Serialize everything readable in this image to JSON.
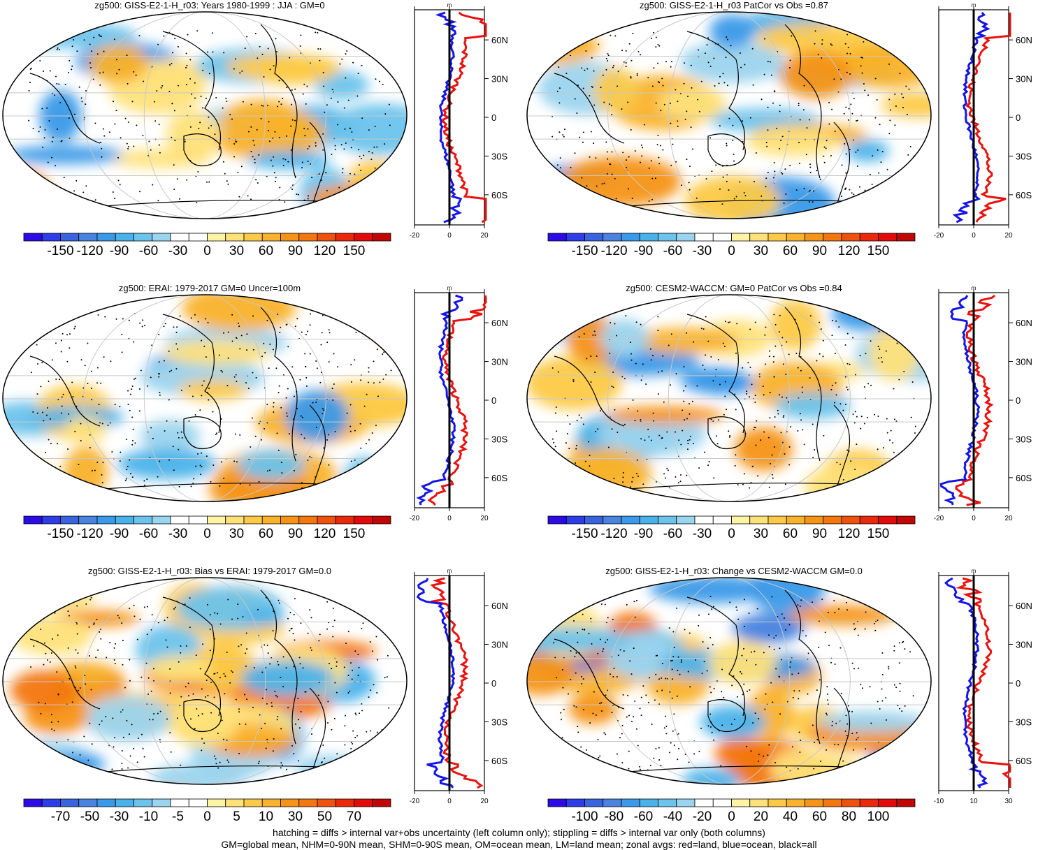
{
  "rows": [
    {
      "left": {
        "title": "zg500: GISS-E2-1-H_r03: Years 1980-1999 : JJA : GM=0",
        "colorbar": "main",
        "zonal_axis": [
          "-20",
          "0",
          "20"
        ]
      },
      "right": {
        "title": "zg500: GISS-E2-1-H_r03 PatCor vs Obs =0.87",
        "colorbar": "main",
        "zonal_axis": [
          "-20",
          "0",
          "20"
        ]
      }
    },
    {
      "left": {
        "title": "zg500: ERAI: 1979-2017 GM=0 Uncer=100m",
        "colorbar": "main",
        "zonal_axis": [
          "-20",
          "0",
          "20"
        ]
      },
      "right": {
        "title": "zg500: CESM2-WACCM: GM=0 PatCor vs Obs =0.84",
        "colorbar": "main",
        "zonal_axis": [
          "-20",
          "0",
          "20"
        ]
      }
    },
    {
      "left": {
        "title": "zg500: GISS-E2-1-H_r03: Bias vs ERAI: 1979-2017 GM=0.0",
        "colorbar": "bias",
        "zonal_axis": [
          "-20",
          "0",
          "20"
        ]
      },
      "right": {
        "title": "zg500: GISS-E2-1-H_r03: Change vs CESM2-WACCM GM=0.0",
        "colorbar": "change",
        "zonal_axis": [
          "-10",
          "10",
          "30"
        ]
      }
    }
  ],
  "colorbars": {
    "main": [
      "-150",
      "-120",
      "-90",
      "-60",
      "-30",
      "0",
      "30",
      "60",
      "90",
      "120",
      "150"
    ],
    "bias": [
      "-70",
      "-50",
      "-30",
      "-10",
      "-5",
      "0",
      "5",
      "10",
      "30",
      "50",
      "70"
    ],
    "change": [
      "-100",
      "-80",
      "-60",
      "-40",
      "-20",
      "0",
      "20",
      "40",
      "60",
      "80",
      "100"
    ]
  },
  "colorbar_colors": [
    "#2b0be6",
    "#2e3de8",
    "#3a64df",
    "#4a84e0",
    "#3a99e8",
    "#49b2ea",
    "#6cc3ec",
    "#9bd4ee",
    "#ffffff",
    "#ffffff",
    "#fff3a6",
    "#ffe17a",
    "#fdca47",
    "#f9b22b",
    "#f69418",
    "#f3760f",
    "#ef520c",
    "#e9290a",
    "#e20a0a",
    "#c10606"
  ],
  "zonal_unit": "m",
  "lat_labels": [
    "60N",
    "30N",
    "0",
    "30S",
    "60S"
  ],
  "chart_data": [
    {
      "type": "map",
      "title": "zg500: GISS-E2-1-H_r03: Years 1980-1999 : JJA : GM=0",
      "colorbar_ticks": [
        -150,
        -120,
        -90,
        -60,
        -30,
        0,
        30,
        60,
        90,
        120,
        150
      ],
      "zonal_xlim": [
        -20,
        20
      ]
    },
    {
      "type": "map",
      "title": "zg500: GISS-E2-1-H_r03 PatCor vs Obs =0.87",
      "colorbar_ticks": [
        -150,
        -120,
        -90,
        -60,
        -30,
        0,
        30,
        60,
        90,
        120,
        150
      ],
      "zonal_xlim": [
        -20,
        20
      ]
    },
    {
      "type": "map",
      "title": "zg500: ERAI: 1979-2017 GM=0 Uncer=100m",
      "colorbar_ticks": [
        -150,
        -120,
        -90,
        -60,
        -30,
        0,
        30,
        60,
        90,
        120,
        150
      ],
      "zonal_xlim": [
        -20,
        20
      ]
    },
    {
      "type": "map",
      "title": "zg500: CESM2-WACCM: GM=0 PatCor vs Obs =0.84",
      "colorbar_ticks": [
        -150,
        -120,
        -90,
        -60,
        -30,
        0,
        30,
        60,
        90,
        120,
        150
      ],
      "zonal_xlim": [
        -20,
        20
      ]
    },
    {
      "type": "map",
      "title": "zg500: GISS-E2-1-H_r03: Bias vs ERAI: 1979-2017 GM=0.0",
      "colorbar_ticks": [
        -70,
        -50,
        -30,
        -10,
        -5,
        0,
        5,
        10,
        30,
        50,
        70
      ],
      "zonal_xlim": [
        -20,
        20
      ]
    },
    {
      "type": "map",
      "title": "zg500: GISS-E2-1-H_r03: Change vs CESM2-WACCM GM=0.0",
      "colorbar_ticks": [
        -100,
        -80,
        -60,
        -40,
        -20,
        0,
        20,
        40,
        60,
        80,
        100
      ],
      "zonal_xlim": [
        -15,
        35
      ]
    }
  ],
  "footer": {
    "line1": "hatching = diffs > internal var+obs uncertainty (left column only); stippling = diffs > internal var only (both columns)",
    "line2": "GM=global mean, NHM=0-90N mean, SHM=0-90S mean, OM=ocean mean, LM=land mean; zonal avgs: red=land, blue=ocean, black=all"
  }
}
